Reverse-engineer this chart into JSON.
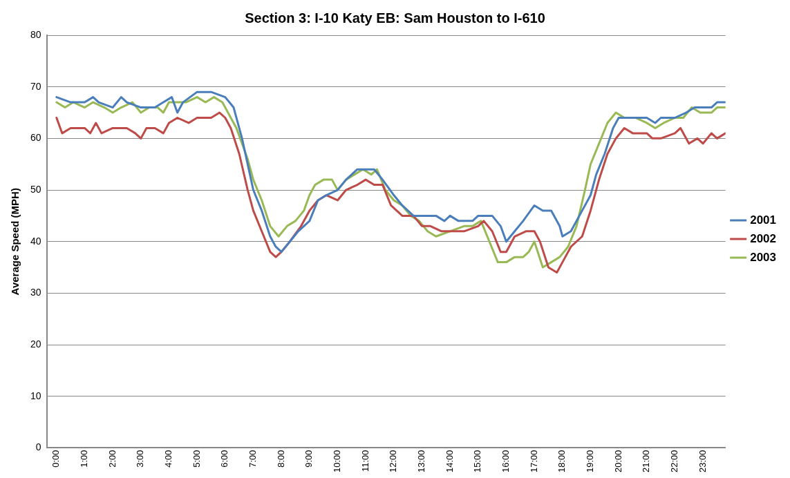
{
  "chart_data": {
    "type": "line",
    "title": "Section 3: I-10 Katy EB: Sam Houston to I-610",
    "ylabel": "Average Speed (MPH)",
    "xlim": [
      -0.35,
      23.8
    ],
    "xticks": [
      {
        "value": 0,
        "label": "0:00"
      },
      {
        "value": 1,
        "label": "1:00"
      },
      {
        "value": 2,
        "label": "2:00"
      },
      {
        "value": 3,
        "label": "3:00"
      },
      {
        "value": 4,
        "label": "4:00"
      },
      {
        "value": 5,
        "label": "5:00"
      },
      {
        "value": 6,
        "label": "6:00"
      },
      {
        "value": 7,
        "label": "7:00"
      },
      {
        "value": 8,
        "label": "8:00"
      },
      {
        "value": 9,
        "label": "9:00"
      },
      {
        "value": 10,
        "label": "10:00"
      },
      {
        "value": 11,
        "label": "11:00"
      },
      {
        "value": 12,
        "label": "12:00"
      },
      {
        "value": 13,
        "label": "13:00"
      },
      {
        "value": 14,
        "label": "14:00"
      },
      {
        "value": 15,
        "label": "15:00"
      },
      {
        "value": 16,
        "label": "16:00"
      },
      {
        "value": 17,
        "label": "17:00"
      },
      {
        "value": 18,
        "label": "18:00"
      },
      {
        "value": 19,
        "label": "19:00"
      },
      {
        "value": 20,
        "label": "20:00"
      },
      {
        "value": 21,
        "label": "21:00"
      },
      {
        "value": 22,
        "label": "22:00"
      },
      {
        "value": 23,
        "label": "23:00"
      }
    ],
    "ylim": [
      0,
      80
    ],
    "yticks": [
      0,
      10,
      20,
      30,
      40,
      50,
      60,
      70,
      80
    ],
    "grid": "y",
    "legend": "right",
    "marker": "none",
    "line_style": "solid",
    "series": [
      {
        "name": "2001",
        "color": "#4a7ebb",
        "x": [
          0,
          0.5,
          1,
          1.3,
          1.5,
          2,
          2.3,
          2.5,
          3,
          3.5,
          3.8,
          4.1,
          4.3,
          4.5,
          5,
          5.5,
          6,
          6.3,
          6.6,
          7,
          7.3,
          7.6,
          7.8,
          8,
          8.3,
          8.6,
          9,
          9.3,
          9.6,
          10,
          10.3,
          10.7,
          11.3,
          11.6,
          12,
          12.3,
          12.7,
          13,
          13.5,
          13.8,
          14,
          14.3,
          14.8,
          15,
          15.5,
          15.8,
          16,
          16.3,
          16.6,
          17,
          17.3,
          17.6,
          17.9,
          18,
          18.3,
          18.6,
          19,
          19.2,
          19.5,
          19.8,
          20,
          20.5,
          21,
          21.3,
          21.5,
          22,
          22.4,
          22.7,
          23,
          23.3,
          23.5,
          23.8
        ],
        "values": [
          68,
          67,
          67,
          68,
          67,
          66,
          68,
          67,
          66,
          66,
          67,
          68,
          65,
          67,
          69,
          69,
          68,
          66,
          60,
          50,
          46,
          41,
          39,
          38,
          40,
          42,
          44,
          48,
          49,
          50,
          52,
          54,
          54,
          52,
          49,
          47,
          45,
          45,
          45,
          44,
          45,
          44,
          44,
          45,
          45,
          43,
          40,
          42,
          44,
          47,
          46,
          46,
          43,
          41,
          42,
          45,
          49,
          53,
          57,
          62,
          64,
          64,
          64,
          63,
          64,
          64,
          65,
          66,
          66,
          66,
          67,
          67
        ]
      },
      {
        "name": "2002",
        "color": "#be4b48",
        "x": [
          0,
          0.2,
          0.5,
          1,
          1.2,
          1.4,
          1.6,
          2,
          2.5,
          2.8,
          3,
          3.2,
          3.5,
          3.8,
          4,
          4.3,
          4.7,
          5,
          5.5,
          5.8,
          6,
          6.2,
          6.5,
          6.8,
          7,
          7.3,
          7.6,
          7.8,
          8,
          8.3,
          8.7,
          9,
          9.3,
          9.6,
          10,
          10.3,
          10.7,
          11,
          11.3,
          11.6,
          11.9,
          12.3,
          12.7,
          13,
          13.3,
          13.7,
          14,
          14.5,
          15,
          15.2,
          15.5,
          15.8,
          16,
          16.3,
          16.7,
          17,
          17.2,
          17.5,
          17.8,
          18,
          18.3,
          18.7,
          19,
          19.3,
          19.6,
          19.9,
          20.2,
          20.5,
          21,
          21.2,
          21.5,
          22,
          22.2,
          22.5,
          22.8,
          23,
          23.3,
          23.5,
          23.8
        ],
        "values": [
          64,
          61,
          62,
          62,
          61,
          63,
          61,
          62,
          62,
          61,
          60,
          62,
          62,
          61,
          63,
          64,
          63,
          64,
          64,
          65,
          64,
          62,
          57,
          50,
          46,
          42,
          38,
          37,
          38,
          40,
          43,
          46,
          48,
          49,
          48,
          50,
          51,
          52,
          51,
          51,
          47,
          45,
          45,
          43,
          43,
          42,
          42,
          42,
          43,
          44,
          42,
          38,
          38,
          41,
          42,
          42,
          40,
          35,
          34,
          36,
          39,
          41,
          46,
          52,
          57,
          60,
          62,
          61,
          61,
          60,
          60,
          61,
          62,
          59,
          60,
          59,
          61,
          60,
          61
        ]
      },
      {
        "name": "2003",
        "color": "#98b954",
        "x": [
          0,
          0.3,
          0.6,
          1,
          1.3,
          1.7,
          2,
          2.3,
          2.7,
          3,
          3.3,
          3.6,
          3.8,
          4,
          4.3,
          4.6,
          5,
          5.3,
          5.6,
          5.9,
          6.1,
          6.4,
          6.8,
          7,
          7.3,
          7.6,
          7.9,
          8.2,
          8.5,
          8.8,
          9,
          9.2,
          9.5,
          9.8,
          10,
          10.3,
          10.6,
          10.9,
          11.2,
          11.4,
          11.7,
          12,
          12.3,
          12.6,
          12.9,
          13.2,
          13.5,
          14,
          14.5,
          14.8,
          15.1,
          15.4,
          15.7,
          16,
          16.3,
          16.6,
          16.8,
          17,
          17.3,
          17.6,
          17.9,
          18.2,
          18.5,
          18.8,
          19,
          19.3,
          19.6,
          19.9,
          20.2,
          20.6,
          21,
          21.3,
          21.6,
          22,
          22.3,
          22.6,
          22.9,
          23.3,
          23.5,
          23.8
        ],
        "values": [
          67,
          66,
          67,
          66,
          67,
          66,
          65,
          66,
          67,
          65,
          66,
          66,
          65,
          67,
          67,
          67,
          68,
          67,
          68,
          67,
          65,
          62,
          56,
          52,
          48,
          43,
          41,
          43,
          44,
          46,
          49,
          51,
          52,
          52,
          50,
          52,
          53,
          54,
          53,
          54,
          50,
          48,
          47,
          45,
          44,
          42,
          41,
          42,
          43,
          43,
          44,
          40,
          36,
          36,
          37,
          37,
          38,
          40,
          35,
          36,
          37,
          39,
          43,
          50,
          55,
          59,
          63,
          65,
          64,
          64,
          63,
          62,
          63,
          64,
          64,
          66,
          65,
          65,
          66,
          66
        ]
      }
    ]
  }
}
